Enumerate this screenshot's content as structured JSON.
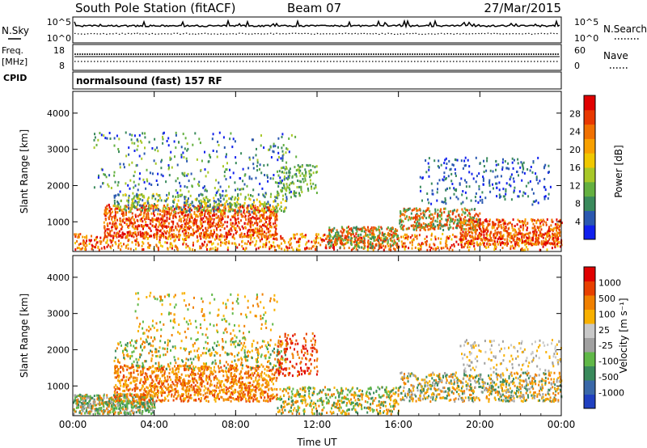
{
  "header": {
    "station": "South Pole Station (fitACF)",
    "beam": "Beam 07",
    "date": "27/Mar/2015"
  },
  "top_panels": {
    "nsky": {
      "label": "N.Sky",
      "ticks": [
        "10^5",
        "10^0"
      ]
    },
    "nsearch": {
      "label": "N.Search",
      "ticks": [
        "10^5",
        "10^0"
      ]
    },
    "freq": {
      "label_line1": "Freq.",
      "label_line2": "[MHz]",
      "ticks": [
        "18",
        "8"
      ]
    },
    "nave": {
      "label": "Nave",
      "ticks": [
        "60",
        "0"
      ]
    },
    "cpid": {
      "label": "CPID",
      "value": "normalsound (fast) 157 RF"
    }
  },
  "chart_data": [
    {
      "type": "heatmap",
      "ylabel": "Slant Range [km]",
      "xlabel": "",
      "yticks": [
        "1000",
        "2000",
        "3000",
        "4000"
      ],
      "y_ticks_values": [
        1000,
        2000,
        3000,
        4000
      ],
      "ylim": [
        180,
        4600
      ],
      "xlim_hours": [
        0,
        24
      ],
      "colorbar": {
        "label": "Power [dB]",
        "ticks": [
          "4",
          "8",
          "12",
          "16",
          "20",
          "24",
          "28"
        ],
        "colors": [
          "#1020ee",
          "#2a58b0",
          "#3a8a5c",
          "#64b040",
          "#a8c828",
          "#f0c800",
          "#f8a000",
          "#f07000",
          "#e83800",
          "#e00000"
        ]
      }
    },
    {
      "type": "heatmap",
      "ylabel": "Slant Range [km]",
      "xlabel": "Time UT",
      "yticks": [
        "1000",
        "2000",
        "3000",
        "4000"
      ],
      "y_ticks_values": [
        1000,
        2000,
        3000,
        4000
      ],
      "ylim": [
        180,
        4600
      ],
      "xlim_hours": [
        0,
        24
      ],
      "xticks": [
        "00:00",
        "04:00",
        "08:00",
        "12:00",
        "16:00",
        "20:00",
        "00:00"
      ],
      "x_ticks_values": [
        0,
        4,
        8,
        12,
        16,
        20,
        24
      ],
      "colorbar": {
        "label": "Velocity [m s⁻¹]",
        "ticks": [
          "1000",
          "500",
          "100",
          "25",
          "-25",
          "-100",
          "-500",
          "-1000"
        ],
        "colors": [
          "#2040c0",
          "#3a68a8",
          "#3a8a5c",
          "#60b848",
          "#a0a0a0",
          "#c8c8c8",
          "#f8b000",
          "#f08000",
          "#e84000",
          "#e00000"
        ]
      }
    }
  ]
}
